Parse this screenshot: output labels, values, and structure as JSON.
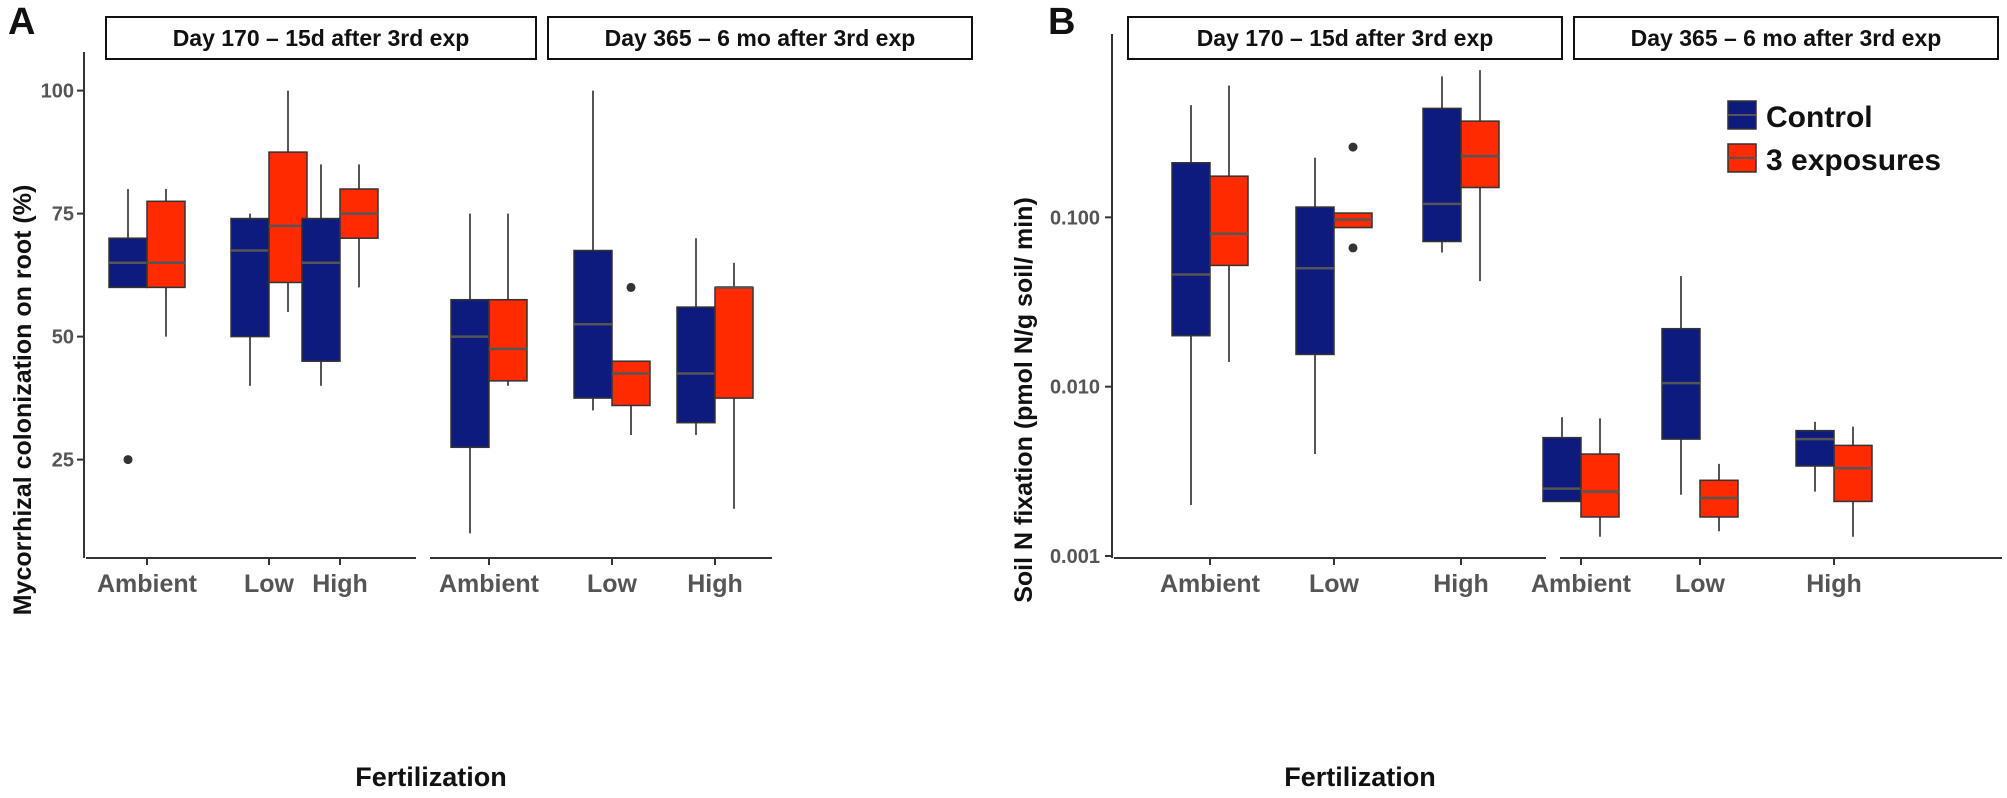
{
  "figure": {
    "panel_labels": [
      "A",
      "B"
    ],
    "strip_labels": [
      "Day 170 – 15d after 3rd exp",
      "Day 365 – 6 mo after 3rd exp"
    ],
    "xlabel": "Fertilization",
    "categories": [
      "Ambient",
      "Low",
      "High"
    ]
  },
  "legend": {
    "items": [
      {
        "name": "Control",
        "color": "#0c1b7d"
      },
      {
        "name": "3 exposures",
        "color": "#ff2a00"
      }
    ]
  },
  "colors": {
    "control": "#0c1b7d",
    "exposed": "#ff2a00",
    "median": "#555555",
    "whisker": "#555555",
    "outlier": "#333333",
    "axis": "#333333"
  },
  "chart_data": [
    {
      "type": "boxplot",
      "panel": "A",
      "ylabel": "Mycorrhizal colonization on root (%)",
      "yscale": "linear",
      "ylim": [
        5,
        105
      ],
      "yticks": [
        25,
        50,
        75,
        100
      ],
      "ytick_labels": [
        "25",
        "50",
        "75",
        "100"
      ],
      "facets": [
        {
          "label": "Day 170 – 15d after 3rd exp",
          "groups": [
            {
              "category": "Ambient",
              "series": "Control",
              "min": 60,
              "q1": 60,
              "median": 65,
              "q3": 70,
              "max": 80,
              "outliers": [
                25
              ]
            },
            {
              "category": "Ambient",
              "series": "3 exposures",
              "min": 50,
              "q1": 60,
              "median": 65,
              "q3": 77.5,
              "max": 80,
              "outliers": []
            },
            {
              "category": "Low",
              "series": "Control",
              "min": 40,
              "q1": 50,
              "median": 67.5,
              "q3": 74,
              "max": 75,
              "outliers": []
            },
            {
              "category": "Low",
              "series": "3 exposures",
              "min": 55,
              "q1": 61,
              "median": 72.5,
              "q3": 87.5,
              "max": 100,
              "outliers": []
            },
            {
              "category": "High",
              "series": "Control",
              "min": 40,
              "q1": 45,
              "median": 65,
              "q3": 74,
              "max": 85,
              "outliers": []
            },
            {
              "category": "High",
              "series": "3 exposures",
              "min": 60,
              "q1": 70,
              "median": 75,
              "q3": 80,
              "max": 85,
              "outliers": []
            }
          ]
        },
        {
          "label": "Day 365 – 6 mo after 3rd exp",
          "groups": [
            {
              "category": "Ambient",
              "series": "Control",
              "min": 10,
              "q1": 27.5,
              "median": 50,
              "q3": 57.5,
              "max": 75,
              "outliers": []
            },
            {
              "category": "Ambient",
              "series": "3 exposures",
              "min": 40,
              "q1": 41,
              "median": 47.5,
              "q3": 57.5,
              "max": 75,
              "outliers": []
            },
            {
              "category": "Low",
              "series": "Control",
              "min": 35,
              "q1": 37.5,
              "median": 52.5,
              "q3": 67.5,
              "max": 100,
              "outliers": []
            },
            {
              "category": "Low",
              "series": "3 exposures",
              "min": 30,
              "q1": 36,
              "median": 42.5,
              "q3": 45,
              "max": 45,
              "outliers": [
                60
              ]
            },
            {
              "category": "High",
              "series": "Control",
              "min": 30,
              "q1": 32.5,
              "median": 42.5,
              "q3": 56,
              "max": 70,
              "outliers": []
            },
            {
              "category": "High",
              "series": "3 exposures",
              "min": 15,
              "q1": 37.5,
              "median": 60,
              "q3": 60,
              "max": 65,
              "outliers": []
            }
          ]
        }
      ]
    },
    {
      "type": "boxplot",
      "panel": "B",
      "ylabel": "Soil N fixation (pmol N/g soil/ min)",
      "yscale": "log10",
      "ylim": [
        0.001,
        1.0
      ],
      "yticks": [
        0.001,
        0.01,
        0.1
      ],
      "ytick_labels": [
        "0.001",
        "0.010",
        "0.100"
      ],
      "facets": [
        {
          "label": "Day 170 – 15d after 3rd exp",
          "groups": [
            {
              "category": "Ambient",
              "series": "Control",
              "min": 0.002,
              "q1": 0.02,
              "median": 0.046,
              "q3": 0.21,
              "max": 0.46,
              "outliers": []
            },
            {
              "category": "Ambient",
              "series": "3 exposures",
              "min": 0.014,
              "q1": 0.052,
              "median": 0.08,
              "q3": 0.175,
              "max": 0.6,
              "outliers": []
            },
            {
              "category": "Low",
              "series": "Control",
              "min": 0.004,
              "q1": 0.0155,
              "median": 0.05,
              "q3": 0.115,
              "max": 0.225,
              "outliers": []
            },
            {
              "category": "Low",
              "series": "3 exposures",
              "min": 0.087,
              "q1": 0.087,
              "median": 0.097,
              "q3": 0.106,
              "max": 0.106,
              "outliers": [
                0.26,
                0.066
              ]
            },
            {
              "category": "High",
              "series": "Control",
              "min": 0.062,
              "q1": 0.072,
              "median": 0.12,
              "q3": 0.44,
              "max": 0.68,
              "outliers": []
            },
            {
              "category": "High",
              "series": "3 exposures",
              "min": 0.042,
              "q1": 0.15,
              "median": 0.23,
              "q3": 0.37,
              "max": 0.74,
              "outliers": []
            }
          ]
        },
        {
          "label": "Day 365 – 6 mo after 3rd exp",
          "groups": [
            {
              "category": "Ambient",
              "series": "Control",
              "min": 0.0021,
              "q1": 0.0021,
              "median": 0.0025,
              "q3": 0.005,
              "max": 0.0066,
              "outliers": []
            },
            {
              "category": "Ambient",
              "series": "3 exposures",
              "min": 0.0013,
              "q1": 0.0017,
              "median": 0.0024,
              "q3": 0.004,
              "max": 0.0065,
              "outliers": []
            },
            {
              "category": "Low",
              "series": "Control",
              "min": 0.0023,
              "q1": 0.0049,
              "median": 0.0105,
              "q3": 0.022,
              "max": 0.045,
              "outliers": []
            },
            {
              "category": "Low",
              "series": "3 exposures",
              "min": 0.0014,
              "q1": 0.0017,
              "median": 0.0022,
              "q3": 0.0028,
              "max": 0.0035,
              "outliers": []
            },
            {
              "category": "High",
              "series": "Control",
              "min": 0.0024,
              "q1": 0.0034,
              "median": 0.0049,
              "q3": 0.0055,
              "max": 0.0062,
              "outliers": []
            },
            {
              "category": "High",
              "series": "3 exposures",
              "min": 0.0013,
              "q1": 0.0021,
              "median": 0.0033,
              "q3": 0.0045,
              "max": 0.0058,
              "outliers": []
            }
          ]
        }
      ]
    }
  ]
}
